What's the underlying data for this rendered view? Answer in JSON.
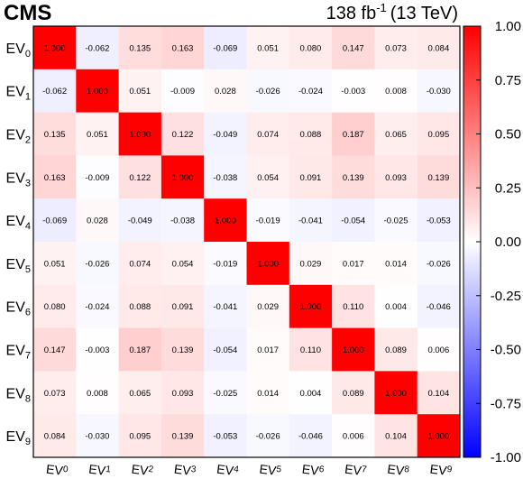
{
  "header": {
    "experiment": "CMS",
    "lumi": "138 fb",
    "lumi_exp": "-1",
    "energy": "(13 TeV)"
  },
  "chart_data": {
    "type": "heatmap",
    "title": "",
    "xlabel": "",
    "ylabel": "",
    "labels": [
      {
        "base": "EV",
        "sub": "0"
      },
      {
        "base": "EV",
        "sub": "1"
      },
      {
        "base": "EV",
        "sub": "2"
      },
      {
        "base": "EV",
        "sub": "3"
      },
      {
        "base": "EV",
        "sub": "4"
      },
      {
        "base": "EV",
        "sub": "5"
      },
      {
        "base": "EV",
        "sub": "6"
      },
      {
        "base": "EV",
        "sub": "7"
      },
      {
        "base": "EV",
        "sub": "8"
      },
      {
        "base": "EV",
        "sub": "9"
      }
    ],
    "matrix": [
      [
        "1.000",
        "-0.062",
        "0.135",
        "0.163",
        "-0.069",
        "0.051",
        "0.080",
        "0.147",
        "0.073",
        "0.084"
      ],
      [
        "-0.062",
        "1.000",
        "0.051",
        "-0.009",
        "0.028",
        "-0.026",
        "-0.024",
        "-0.003",
        "0.008",
        "-0.030"
      ],
      [
        "0.135",
        "0.051",
        "1.000",
        "0.122",
        "-0.049",
        "0.074",
        "0.088",
        "0.187",
        "0.065",
        "0.095"
      ],
      [
        "0.163",
        "-0.009",
        "0.122",
        "1.000",
        "-0.038",
        "0.054",
        "0.091",
        "0.139",
        "0.093",
        "0.139"
      ],
      [
        "-0.069",
        "0.028",
        "-0.049",
        "-0.038",
        "1.000",
        "-0.019",
        "-0.041",
        "-0.054",
        "-0.025",
        "-0.053"
      ],
      [
        "0.051",
        "-0.026",
        "0.074",
        "0.054",
        "-0.019",
        "1.000",
        "0.029",
        "0.017",
        "0.014",
        "-0.026"
      ],
      [
        "0.080",
        "-0.024",
        "0.088",
        "0.091",
        "-0.041",
        "0.029",
        "1.000",
        "0.110",
        "0.004",
        "-0.046"
      ],
      [
        "0.147",
        "-0.003",
        "0.187",
        "0.139",
        "-0.054",
        "0.017",
        "0.110",
        "1.000",
        "0.089",
        "0.006"
      ],
      [
        "0.073",
        "0.008",
        "0.065",
        "0.093",
        "-0.025",
        "0.014",
        "0.004",
        "0.089",
        "1.000",
        "0.104"
      ],
      [
        "0.084",
        "-0.030",
        "0.095",
        "0.139",
        "-0.053",
        "-0.026",
        "-0.046",
        "0.006",
        "0.104",
        "1.000"
      ]
    ],
    "zlim": [
      -1.0,
      1.0
    ],
    "colorbar_ticks": [
      "-1.00",
      "-0.75",
      "-0.50",
      "-0.25",
      "0.00",
      "0.25",
      "0.50",
      "0.75",
      "1.00"
    ],
    "colormap": {
      "low": "#0000ff",
      "mid": "#ffffff",
      "high": "#ff0000"
    },
    "grid": false
  }
}
